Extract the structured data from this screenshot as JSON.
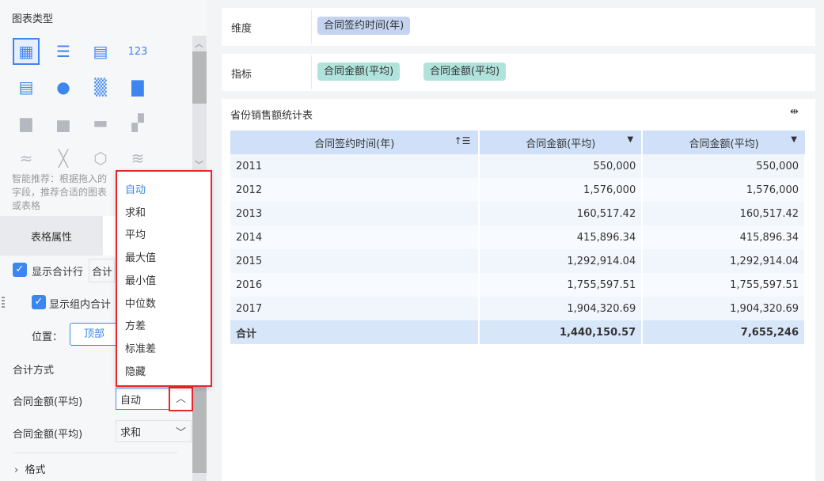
{
  "left_panel": {
    "chart_type_title": "图表类型",
    "chart_types": [
      "grouped-table-icon",
      "detail-table-icon",
      "cross-table-icon",
      "kpi-number-icon",
      "colored-kpi-icon",
      "indicator-card-icon",
      "heatmap-icon",
      "grouped-bar-icon",
      "bar-chart-icon",
      "column-chart-icon",
      "waterfall-icon",
      "step-chart-icon",
      "multi-line-icon",
      "line-chart-icon",
      "radar-icon",
      "area-chart-icon"
    ],
    "smart_tip": "智能推荐：根据拖入的字段，推荐合适的图表或表格",
    "tab_label": "表格属性",
    "show_total_row": "显示合计行",
    "total_select": "合计",
    "show_group_total": "显示组内合计",
    "position_label": "位置：",
    "position_value": "顶部",
    "total_method_title": "合计方式",
    "metrics": [
      {
        "label": "合同金额(平均)",
        "value": "自动"
      },
      {
        "label": "合同金额(平均)",
        "value": "求和"
      }
    ],
    "format_label": "格式",
    "dropdown_options": [
      "自动",
      "求和",
      "平均",
      "最大值",
      "最小值",
      "中位数",
      "方差",
      "标准差",
      "隐藏"
    ],
    "dropdown_selected": "自动"
  },
  "dimension": {
    "label": "维度",
    "fields": [
      "合同签约时间(年)"
    ]
  },
  "indicator": {
    "label": "指标",
    "fields": [
      "合同金额(平均)",
      "合同金额(平均)"
    ]
  },
  "table": {
    "title": "省份销售额统计表",
    "headers": [
      "合同签约时间(年)",
      "合同金额(平均)",
      "合同金额(平均)"
    ],
    "rows": [
      [
        "2011",
        "550,000",
        "550,000"
      ],
      [
        "2012",
        "1,576,000",
        "1,576,000"
      ],
      [
        "2013",
        "160,517.42",
        "160,517.42"
      ],
      [
        "2014",
        "415,896.34",
        "415,896.34"
      ],
      [
        "2015",
        "1,292,914.04",
        "1,292,914.04"
      ],
      [
        "2016",
        "1,755,597.51",
        "1,755,597.51"
      ],
      [
        "2017",
        "1,904,320.69",
        "1,904,320.69"
      ]
    ],
    "total": [
      "合计",
      "1,440,150.57",
      "7,655,246"
    ]
  },
  "colors": {
    "accent": "#3d86f0",
    "highlight": "#e8262b",
    "dimension_pill": "#c3d3f0",
    "indicator_pill": "#b1e3dd"
  }
}
